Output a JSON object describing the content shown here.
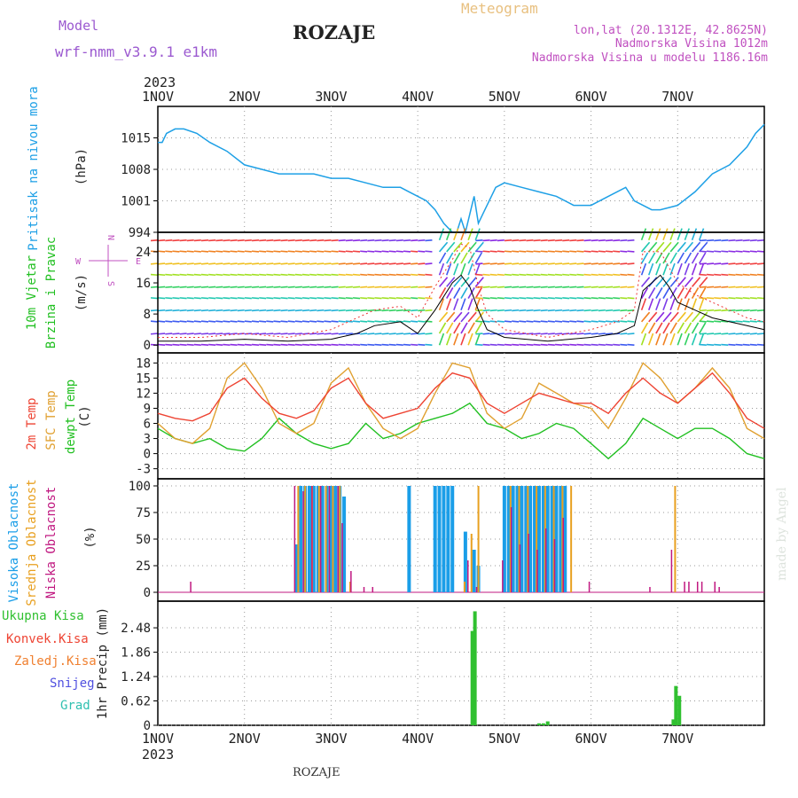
{
  "header": {
    "model_label": "Model",
    "model_name": "wrf-nmm_v3.9.1 e1km",
    "title": "ROZAJE",
    "subtitle": "Meteogram",
    "coords": "lon,lat (20.1312E, 42.8625N)",
    "elevation": "Nadmorska Visina 1012m",
    "model_elevation": "Nadmorska Visina u modelu 1186.16m",
    "year_top": "2023",
    "year_bottom": "2023",
    "footer": "ROZAJE",
    "credit": "made by Angel"
  },
  "colors": {
    "pressure": "#1ea0e6",
    "temp2m": "#ee4433",
    "sfc": "#e0a030",
    "dewpt": "#22c022",
    "high_cloud": "#1a9ee8",
    "mid_cloud": "#e8a020",
    "low_cloud": "#c01880",
    "precip_total": "#30c030",
    "precip_conv": "#ee4433",
    "precip_frz": "#f08030",
    "precip_snow": "#5050e0",
    "precip_grad": "#30c0b0"
  },
  "chart_data": [
    {
      "type": "line",
      "name": "pressure",
      "x_ticks": [
        "1NOV",
        "2NOV",
        "3NOV",
        "4NOV",
        "5NOV",
        "6NOV",
        "7NOV"
      ],
      "ylabel": "(hPa)",
      "side_label": "Pritisak na nivou mora",
      "yticks": [
        994,
        1001,
        1008,
        1015
      ],
      "ylim": [
        994,
        1022
      ],
      "series": [
        {
          "x": [
            0,
            0.05,
            0.1,
            0.2,
            0.3,
            0.45,
            0.6,
            0.8,
            1.0,
            1.2,
            1.4,
            1.6,
            1.8,
            2.0,
            2.2,
            2.4,
            2.6,
            2.8,
            2.9,
            3.0,
            3.1,
            3.2,
            3.3,
            3.4,
            3.45,
            3.5,
            3.55,
            3.6,
            3.65,
            3.7,
            3.75,
            3.8,
            3.9,
            4.0,
            4.2,
            4.4,
            4.6,
            4.8,
            5.0,
            5.2,
            5.4,
            5.5,
            5.6,
            5.7,
            5.8,
            6.0,
            6.2,
            6.4,
            6.6,
            6.8,
            6.9,
            7.0
          ],
          "values": [
            1014,
            1014,
            1016,
            1017,
            1017,
            1016,
            1014,
            1012,
            1009,
            1008,
            1007,
            1007,
            1007,
            1006,
            1006,
            1005,
            1004,
            1004,
            1003,
            1002,
            1001,
            999,
            996,
            994,
            994,
            997,
            994,
            998,
            1002,
            996,
            998,
            1000,
            1004,
            1005,
            1004,
            1003,
            1002,
            1000,
            1000,
            1002,
            1004,
            1001,
            1000,
            999,
            999,
            1000,
            1003,
            1007,
            1009,
            1013,
            1016,
            1018
          ]
        }
      ]
    },
    {
      "type": "line",
      "name": "wind",
      "ylabel": "(m/s)",
      "side_label_1": "10m Vjetar",
      "side_label_2": "Brzina i Pravac",
      "compass": {
        "n": "N",
        "s": "S",
        "e": "E",
        "w": "W"
      },
      "yticks": [
        0,
        8,
        16,
        24
      ],
      "ylim": [
        -2,
        29
      ],
      "series": [
        {
          "name": "speed",
          "x": [
            0,
            0.5,
            1.0,
            1.5,
            2.0,
            2.3,
            2.5,
            2.8,
            3.0,
            3.2,
            3.4,
            3.5,
            3.6,
            3.7,
            3.8,
            4.0,
            4.5,
            5.0,
            5.3,
            5.5,
            5.6,
            5.8,
            5.9,
            6.0,
            6.2,
            6.4,
            6.6,
            6.8,
            7.0
          ],
          "values": [
            1,
            1,
            1.5,
            1,
            1.5,
            3,
            5,
            6,
            3,
            9,
            16,
            18,
            15,
            9,
            4,
            2,
            1,
            2,
            3,
            5,
            14,
            18,
            15,
            11,
            9,
            7,
            6,
            5,
            4
          ]
        },
        {
          "name": "gust",
          "x": [
            0,
            0.5,
            1.0,
            1.5,
            2.0,
            2.3,
            2.5,
            2.8,
            3.0,
            3.2,
            3.4,
            3.5,
            3.6,
            3.7,
            3.8,
            4.0,
            4.5,
            5.0,
            5.3,
            5.5,
            5.6,
            5.8,
            5.9,
            6.0,
            6.2,
            6.4,
            6.6,
            6.8,
            7.0
          ],
          "values": [
            2,
            2,
            3,
            2,
            4,
            7,
            9,
            10,
            7,
            15,
            22,
            26,
            25,
            15,
            8,
            4,
            2,
            4,
            6,
            9,
            24,
            24,
            20,
            16,
            13,
            11,
            9,
            7,
            6
          ]
        }
      ]
    },
    {
      "type": "line",
      "name": "temperature",
      "ylabel": "(C)",
      "side_label_1": "2m Temp",
      "side_label_2": "SFC Temp",
      "side_label_3": "dewpt Temp",
      "yticks": [
        -3,
        0,
        3,
        6,
        9,
        12,
        15,
        18
      ],
      "ylim": [
        -5,
        20
      ],
      "series": [
        {
          "name": "2m",
          "x": [
            0,
            0.2,
            0.4,
            0.6,
            0.8,
            1.0,
            1.2,
            1.4,
            1.6,
            1.8,
            2.0,
            2.2,
            2.4,
            2.6,
            2.8,
            3.0,
            3.2,
            3.4,
            3.6,
            3.8,
            4.0,
            4.2,
            4.4,
            4.6,
            4.8,
            5.0,
            5.2,
            5.4,
            5.6,
            5.8,
            6.0,
            6.2,
            6.4,
            6.6,
            6.8,
            7.0
          ],
          "values": [
            8,
            7,
            6.5,
            8,
            13,
            15,
            11,
            8,
            7,
            8.5,
            13,
            15,
            10,
            7,
            8,
            9,
            13,
            16,
            15,
            10,
            8,
            10,
            12,
            11,
            10,
            10,
            8,
            12,
            15,
            12,
            10,
            13,
            16,
            12,
            7,
            5
          ]
        },
        {
          "name": "sfc",
          "x": [
            0,
            0.2,
            0.4,
            0.6,
            0.8,
            1.0,
            1.2,
            1.4,
            1.6,
            1.8,
            2.0,
            2.2,
            2.4,
            2.6,
            2.8,
            3.0,
            3.2,
            3.4,
            3.6,
            3.8,
            4.0,
            4.2,
            4.4,
            4.6,
            4.8,
            5.0,
            5.2,
            5.4,
            5.6,
            5.8,
            6.0,
            6.2,
            6.4,
            6.6,
            6.8,
            7.0
          ],
          "values": [
            6,
            3,
            2,
            5,
            15,
            18,
            13,
            6,
            4,
            6,
            14,
            17,
            10,
            5,
            3,
            5,
            12,
            18,
            17,
            8,
            5,
            7,
            14,
            12,
            10,
            9,
            5,
            11,
            18,
            15,
            10,
            13,
            17,
            13,
            5,
            3
          ]
        },
        {
          "name": "dewpt",
          "x": [
            0,
            0.2,
            0.4,
            0.6,
            0.8,
            1.0,
            1.2,
            1.4,
            1.6,
            1.8,
            2.0,
            2.2,
            2.4,
            2.6,
            2.8,
            3.0,
            3.2,
            3.4,
            3.6,
            3.8,
            4.0,
            4.2,
            4.4,
            4.6,
            4.8,
            5.0,
            5.2,
            5.4,
            5.6,
            5.8,
            6.0,
            6.2,
            6.4,
            6.6,
            6.8,
            7.0
          ],
          "values": [
            5,
            3,
            2,
            3,
            1,
            0.5,
            3,
            7,
            4,
            2,
            1,
            2,
            6,
            3,
            4,
            6,
            7,
            8,
            10,
            6,
            5,
            3,
            4,
            6,
            5,
            2,
            -1,
            2,
            7,
            5,
            3,
            5,
            5,
            3,
            0,
            -1
          ]
        }
      ]
    },
    {
      "type": "bar",
      "name": "cloud",
      "ylabel": "(%)",
      "side_label_1": "Visoka Oblacnost",
      "side_label_2": "Srednja Oblacnost",
      "side_label_3": "Niska Oblacnost",
      "yticks": [
        0,
        25,
        50,
        75,
        100
      ],
      "ylim": [
        0,
        100
      ],
      "series": [
        {
          "name": "high",
          "x": [
            1.6,
            1.65,
            1.7,
            1.75,
            1.8,
            1.85,
            1.9,
            1.95,
            2.0,
            2.05,
            2.1,
            2.15,
            2.9,
            3.2,
            3.25,
            3.3,
            3.35,
            3.4,
            3.55,
            3.65,
            3.7,
            4.0,
            4.05,
            4.1,
            4.15,
            4.2,
            4.25,
            4.3,
            4.35,
            4.4,
            4.45,
            4.5,
            4.55,
            4.6,
            4.65,
            4.7
          ],
          "values": [
            45,
            100,
            100,
            100,
            100,
            100,
            100,
            100,
            100,
            100,
            100,
            90,
            100,
            100,
            100,
            100,
            100,
            100,
            57,
            40,
            25,
            100,
            100,
            100,
            100,
            100,
            100,
            100,
            100,
            100,
            100,
            100,
            100,
            100,
            100,
            100
          ]
        },
        {
          "name": "mid",
          "x": [
            1.6,
            1.68,
            1.76,
            1.84,
            1.92,
            2.0,
            2.08,
            2.2,
            3.52,
            3.6,
            3.68,
            4.05,
            4.15,
            4.25,
            4.35,
            4.45,
            4.55,
            4.65,
            4.75,
            5.95
          ],
          "values": [
            100,
            100,
            100,
            100,
            100,
            100,
            100,
            10,
            10,
            55,
            100,
            100,
            100,
            100,
            100,
            100,
            100,
            100,
            100,
            100
          ]
        },
        {
          "name": "low",
          "x": [
            0.4,
            1.6,
            1.7,
            1.8,
            1.9,
            2.0,
            2.1,
            2.15,
            2.25,
            2.4,
            2.5,
            3.6,
            3.7,
            4.0,
            4.1,
            4.2,
            4.3,
            4.4,
            4.5,
            4.6,
            4.7,
            5.0,
            5.7,
            5.95,
            6.1,
            6.15,
            6.25,
            6.3,
            6.45,
            6.5
          ],
          "values": [
            10,
            100,
            95,
            100,
            100,
            100,
            100,
            65,
            20,
            5,
            5,
            30,
            5,
            30,
            80,
            45,
            55,
            40,
            60,
            50,
            70,
            10,
            5,
            40,
            10,
            10,
            10,
            10,
            10,
            5
          ]
        }
      ]
    },
    {
      "type": "bar",
      "name": "precip",
      "ylabel": "1hr Precip (mm)",
      "legend": [
        "Ukupna Kisa",
        "Konvek.Kisa",
        "Zaledj.Kisa",
        "Snijeg",
        "Grad"
      ],
      "yticks": [
        0,
        0.62,
        1.24,
        1.86,
        2.48
      ],
      "ylim": [
        0,
        3.0
      ],
      "series": [
        {
          "name": "Ukupna Kisa",
          "x": [
            3.63,
            3.66,
            4.4,
            4.45,
            4.5,
            5.95,
            5.98,
            6.02
          ],
          "values": [
            2.4,
            2.9,
            0.05,
            0.05,
            0.1,
            0.15,
            1.0,
            0.75
          ]
        }
      ]
    }
  ]
}
